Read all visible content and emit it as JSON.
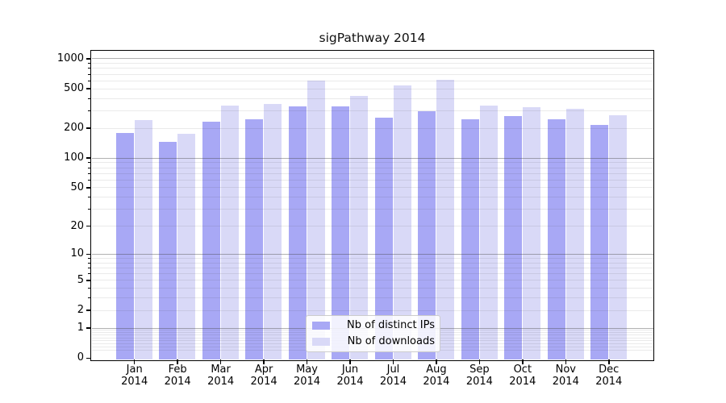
{
  "chart_data": {
    "type": "bar",
    "title": "sigPathway 2014",
    "categories": [
      "Jan",
      "Feb",
      "Mar",
      "Apr",
      "May",
      "Jun",
      "Jul",
      "Aug",
      "Sep",
      "Oct",
      "Nov",
      "Dec"
    ],
    "x_tick_second_line": "2014",
    "series": [
      {
        "name": "Nb of distinct IPs",
        "color": "#a8a8f5",
        "values": [
          180,
          146,
          233,
          245,
          330,
          334,
          256,
          298,
          246,
          265,
          246,
          215
        ]
      },
      {
        "name": "Nb of downloads",
        "color": "#d9d9f7",
        "values": [
          240,
          177,
          340,
          353,
          600,
          425,
          542,
          615,
          338,
          327,
          316,
          272
        ]
      }
    ],
    "y_ticks": [
      0,
      1,
      2,
      5,
      10,
      20,
      50,
      100,
      200,
      500,
      1000
    ],
    "y_scale": "log1p",
    "ylim": [
      0,
      1200
    ],
    "grid": "both",
    "legend_position": "lower-center-inside",
    "colors": {
      "grid_major": "#b1b1b1",
      "grid_minor": "#e9e9e9",
      "axis": "#000000",
      "background": "#ffffff"
    }
  }
}
